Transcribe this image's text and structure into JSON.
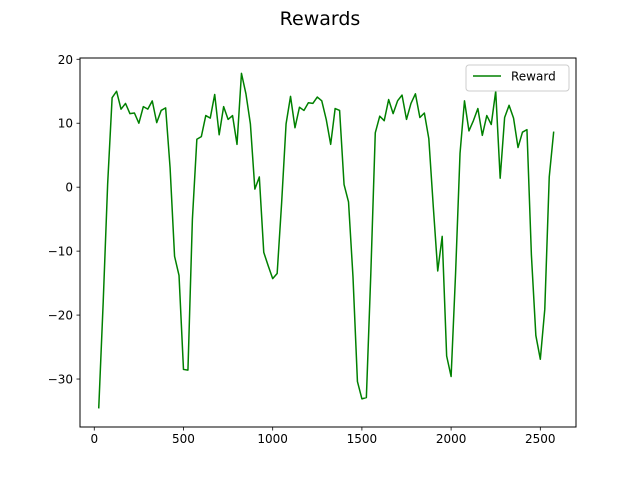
{
  "chart_data": {
    "type": "line",
    "title": "Rewards",
    "xlabel": "",
    "ylabel": "",
    "xlim": [
      -80,
      2700
    ],
    "ylim": [
      -37.5,
      20.2
    ],
    "xticks": [
      0,
      500,
      1000,
      1500,
      2000,
      2500
    ],
    "yticks": [
      -30,
      -20,
      -10,
      0,
      10,
      20
    ],
    "xtick_labels": [
      "0",
      "500",
      "1000",
      "1500",
      "2000",
      "2500"
    ],
    "ytick_labels": [
      "−30",
      "−20",
      "−10",
      "0",
      "10",
      "20"
    ],
    "grid": false,
    "legend": {
      "position": "top-right"
    },
    "series": [
      {
        "name": "Reward",
        "color": "#008000",
        "x": [
          25,
          50,
          75,
          100,
          125,
          150,
          175,
          200,
          225,
          250,
          275,
          300,
          325,
          350,
          375,
          400,
          425,
          450,
          475,
          500,
          525,
          550,
          575,
          600,
          625,
          650,
          675,
          700,
          725,
          750,
          775,
          800,
          825,
          850,
          875,
          900,
          925,
          950,
          975,
          1000,
          1025,
          1050,
          1075,
          1100,
          1125,
          1150,
          1175,
          1200,
          1225,
          1250,
          1275,
          1300,
          1325,
          1350,
          1375,
          1400,
          1425,
          1450,
          1475,
          1500,
          1525,
          1550,
          1575,
          1600,
          1625,
          1650,
          1675,
          1700,
          1725,
          1750,
          1775,
          1800,
          1825,
          1850,
          1875,
          1900,
          1925,
          1950,
          1975,
          2000,
          2025,
          2050,
          2075,
          2100,
          2125,
          2150,
          2175,
          2200,
          2225,
          2250,
          2275,
          2300,
          2325,
          2350,
          2375,
          2400,
          2425,
          2450,
          2475,
          2500,
          2525,
          2550,
          2575
        ],
        "y": [
          -34.6,
          -18,
          0.5,
          14,
          15,
          12.2,
          13.1,
          11.5,
          11.6,
          10,
          12.6,
          12.2,
          13.5,
          10.1,
          12,
          12.4,
          3,
          -10.8,
          -13.8,
          -28.5,
          -28.6,
          -5,
          7.5,
          7.9,
          11.2,
          10.8,
          14.5,
          8.2,
          12.6,
          10.6,
          11.2,
          6.7,
          17.8,
          14.6,
          9.9,
          -0.3,
          1.6,
          -10.2,
          -12.3,
          -14.3,
          -13.5,
          -2.5,
          9.9,
          14.2,
          9.3,
          12.5,
          12,
          13.2,
          13.1,
          14.1,
          13.5,
          10.6,
          6.7,
          12.3,
          12,
          0.4,
          -2.3,
          -14,
          -30.4,
          -33.1,
          -32.9,
          -13.5,
          8.5,
          11.1,
          10.4,
          13.7,
          11.5,
          13.5,
          14.4,
          10.6,
          13.1,
          14.6,
          10.9,
          11.6,
          7.6,
          -3,
          -13.1,
          -7.7,
          -26.4,
          -29.6,
          -13.5,
          5.3,
          13.5,
          8.8,
          10.4,
          12.3,
          8.1,
          11.2,
          9.8,
          15,
          1.4,
          10.9,
          12.8,
          10.8,
          6.2,
          8.6,
          9,
          -10.6,
          -23.2,
          -26.9,
          -19.1,
          1.6,
          8.7
        ]
      }
    ]
  }
}
